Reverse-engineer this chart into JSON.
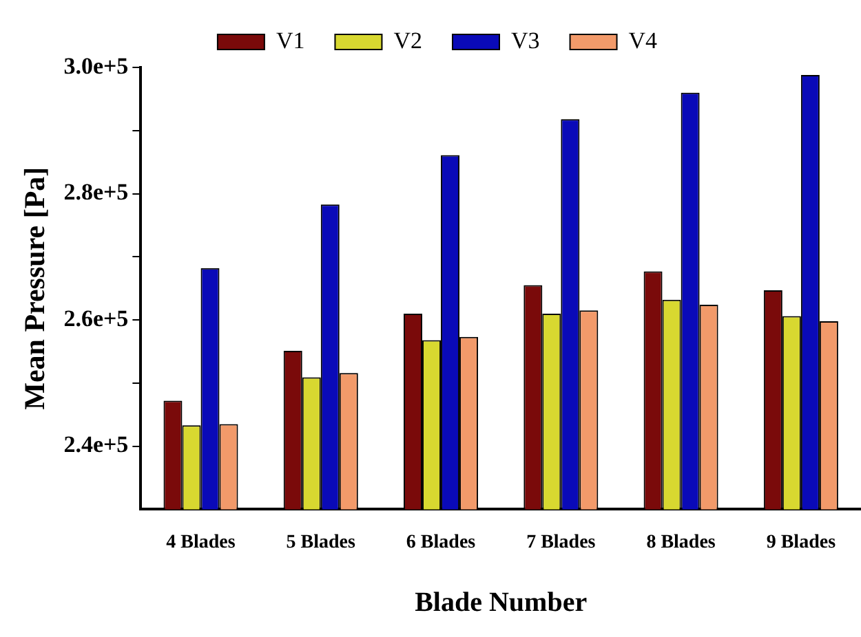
{
  "chart_data": {
    "type": "bar",
    "xlabel": "Blade Number",
    "ylabel": "Mean Pressure [Pa]",
    "categories": [
      "4 Blades",
      "5 Blades",
      "6 Blades",
      "7 Blades",
      "8 Blades",
      "9 Blades"
    ],
    "series": [
      {
        "name": "V1",
        "color": "#7a0a0a",
        "values": [
          247200,
          255100,
          261000,
          265500,
          267700,
          264700
        ]
      },
      {
        "name": "V2",
        "color": "#d8d830",
        "values": [
          243300,
          250900,
          256800,
          261000,
          263200,
          260600
        ]
      },
      {
        "name": "V3",
        "color": "#0a0ab8",
        "values": [
          268200,
          278300,
          286100,
          291800,
          296000,
          298800
        ]
      },
      {
        "name": "V4",
        "color": "#f29a6a",
        "values": [
          243500,
          251600,
          257300,
          261500,
          262400,
          259800
        ]
      }
    ],
    "ylim": [
      230000,
      300000
    ],
    "yticks": [
      {
        "value": 240000,
        "label": "2.4e+5"
      },
      {
        "value": 250000,
        "label": null
      },
      {
        "value": 260000,
        "label": "2.6e+5"
      },
      {
        "value": 270000,
        "label": null
      },
      {
        "value": 280000,
        "label": "2.8e+5"
      },
      {
        "value": 290000,
        "label": null
      },
      {
        "value": 300000,
        "label": "3.0e+5"
      }
    ],
    "grid": false,
    "legend": "top"
  }
}
